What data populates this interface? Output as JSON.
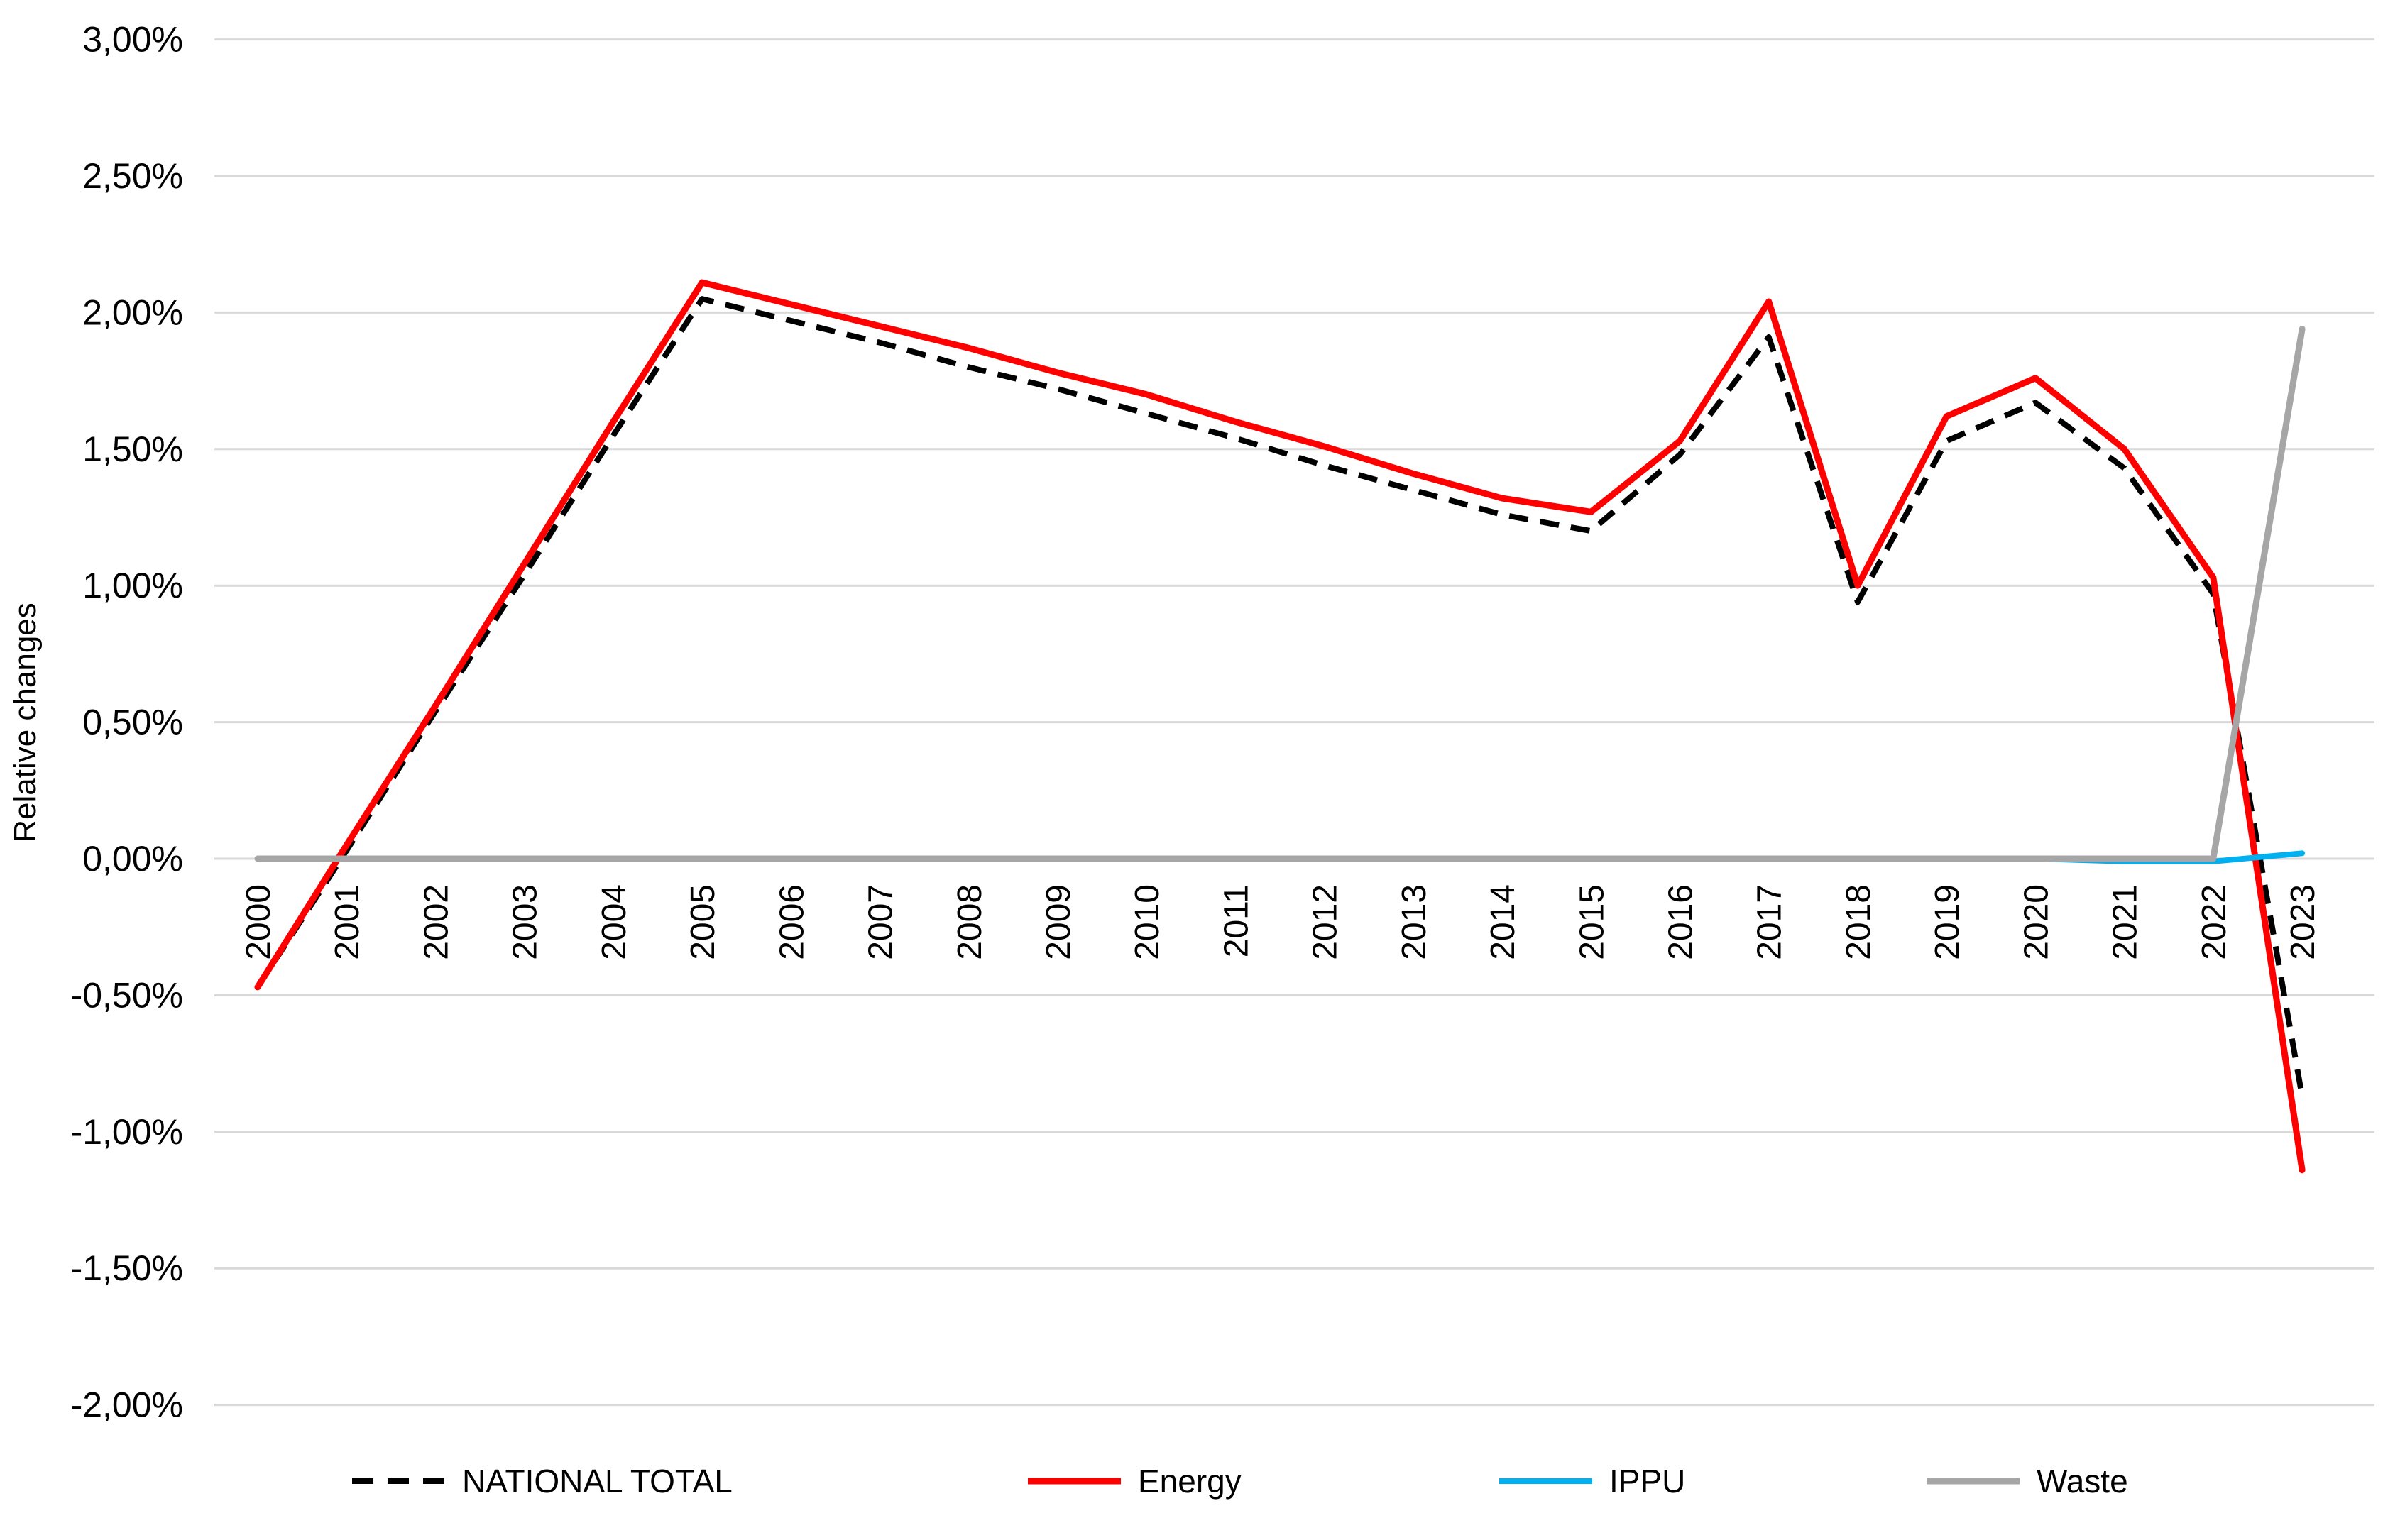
{
  "chart_data": {
    "type": "line",
    "title": "",
    "xlabel": "",
    "ylabel": "Relative changes",
    "ylim": [
      -2.0,
      3.0
    ],
    "y_tick_step": 0.5,
    "grid": "horizontal",
    "legend_position": "bottom",
    "decimal_separator": ",",
    "gridline_color": "#D9D9D9",
    "y_ticks": [
      {
        "label": "3,00%",
        "value": 3.0
      },
      {
        "label": "2,50%",
        "value": 2.5
      },
      {
        "label": "2,00%",
        "value": 2.0
      },
      {
        "label": "1,50%",
        "value": 1.5
      },
      {
        "label": "1,00%",
        "value": 1.0
      },
      {
        "label": "0,50%",
        "value": 0.5
      },
      {
        "label": "0,00%",
        "value": 0.0
      },
      {
        "label": "-0,50%",
        "value": -0.5
      },
      {
        "label": "-1,00%",
        "value": -1.0
      },
      {
        "label": "-1,50%",
        "value": -1.5
      },
      {
        "label": "-2,00%",
        "value": -2.0
      }
    ],
    "categories": [
      "2000",
      "2001",
      "2002",
      "2003",
      "2004",
      "2005",
      "2006",
      "2007",
      "2008",
      "2009",
      "2010",
      "2011",
      "2012",
      "2013",
      "2014",
      "2015",
      "2016",
      "2017",
      "2018",
      "2019",
      "2020",
      "2021",
      "2022",
      "2023"
    ],
    "series": [
      {
        "name": "NATIONAL TOTAL",
        "color": "#000000",
        "style": "dashed",
        "values": [
          -0.47,
          0.03,
          0.54,
          1.04,
          1.55,
          2.05,
          1.97,
          1.89,
          1.8,
          1.72,
          1.63,
          1.54,
          1.44,
          1.35,
          1.26,
          1.2,
          1.48,
          1.91,
          0.94,
          1.53,
          1.67,
          1.43,
          0.97,
          -0.87
        ]
      },
      {
        "name": "Energy",
        "color": "#FF0000",
        "style": "solid",
        "values": [
          -0.47,
          0.05,
          0.56,
          1.08,
          1.6,
          2.11,
          2.03,
          1.95,
          1.87,
          1.78,
          1.7,
          1.6,
          1.51,
          1.41,
          1.32,
          1.27,
          1.53,
          2.04,
          1.0,
          1.62,
          1.76,
          1.5,
          1.03,
          -1.14
        ]
      },
      {
        "name": "IPPU",
        "color": "#00B0F0",
        "style": "solid",
        "values": [
          0,
          0,
          0,
          0,
          0,
          0,
          0,
          0,
          0,
          0,
          0,
          0,
          0,
          0,
          0,
          0,
          0,
          0,
          0,
          0,
          0,
          -0.01,
          -0.01,
          0.02
        ]
      },
      {
        "name": "Waste",
        "color": "#A6A6A6",
        "style": "solid",
        "values": [
          0,
          0,
          0,
          0,
          0,
          0,
          0,
          0,
          0,
          0,
          0,
          0,
          0,
          0,
          0,
          0,
          0,
          0,
          0,
          0,
          0,
          0,
          0,
          1.94
        ]
      }
    ]
  }
}
